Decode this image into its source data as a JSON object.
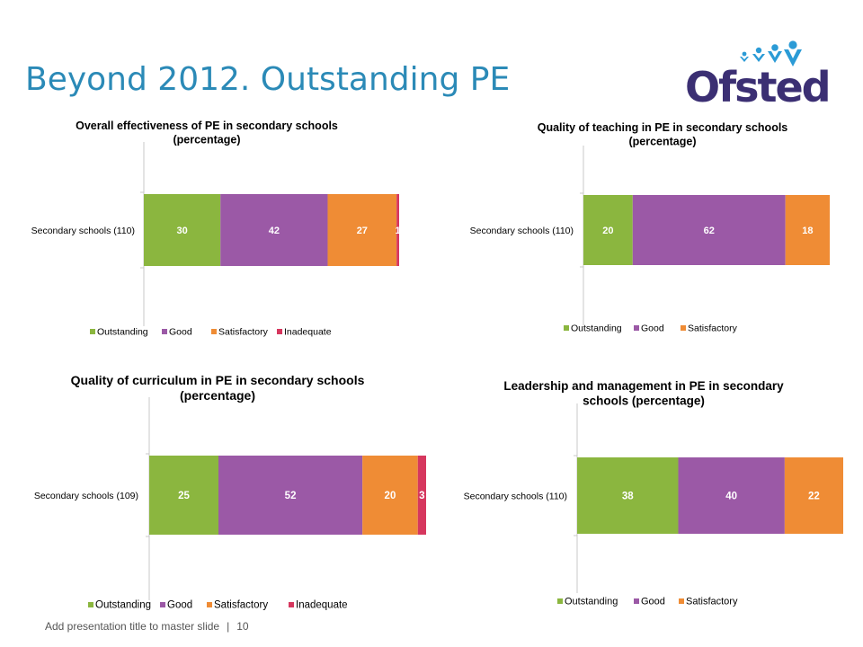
{
  "slide": {
    "title": "Beyond 2012. Outstanding PE",
    "logo_text": "Ofsted",
    "footer_text": "Add presentation title to master slide",
    "footer_sep": "|",
    "page_number": "10"
  },
  "colors": {
    "title": "#2b8ab7",
    "logo": "#3b2f73",
    "Outstanding": "#8bb63f",
    "Good": "#9b59a6",
    "Satisfactory": "#ef8c35",
    "Inadequate": "#d6375e"
  },
  "chart_data": [
    {
      "type": "bar",
      "orientation": "horizontal",
      "stacked": true,
      "title": [
        "Overall effectiveness of PE in secondary schools",
        "(percentage)"
      ],
      "categories": [
        "Secondary schools (110)"
      ],
      "series": [
        {
          "name": "Outstanding",
          "values": [
            30
          ]
        },
        {
          "name": "Good",
          "values": [
            42
          ]
        },
        {
          "name": "Satisfactory",
          "values": [
            27
          ]
        },
        {
          "name": "Inadequate",
          "values": [
            1
          ]
        }
      ],
      "legend": "bottom"
    },
    {
      "type": "bar",
      "orientation": "horizontal",
      "stacked": true,
      "title": [
        "Quality of teaching in PE in secondary schools",
        "(percentage)"
      ],
      "categories": [
        "Secondary schools (110)"
      ],
      "series": [
        {
          "name": "Outstanding",
          "values": [
            20
          ]
        },
        {
          "name": "Good",
          "values": [
            62
          ]
        },
        {
          "name": "Satisfactory",
          "values": [
            18
          ]
        }
      ],
      "legend": "bottom"
    },
    {
      "type": "bar",
      "orientation": "horizontal",
      "stacked": true,
      "title": [
        "Quality of curriculum in PE in secondary schools",
        "(percentage)"
      ],
      "categories": [
        "Secondary schools (109)"
      ],
      "series": [
        {
          "name": "Outstanding",
          "values": [
            25
          ]
        },
        {
          "name": "Good",
          "values": [
            52
          ]
        },
        {
          "name": "Satisfactory",
          "values": [
            20
          ]
        },
        {
          "name": "Inadequate",
          "values": [
            3
          ]
        }
      ],
      "legend": "bottom"
    },
    {
      "type": "bar",
      "orientation": "horizontal",
      "stacked": true,
      "title": [
        "Leadership and management in PE in secondary",
        "schools (percentage)"
      ],
      "categories": [
        "Secondary schools (110)"
      ],
      "series": [
        {
          "name": "Outstanding",
          "values": [
            38
          ]
        },
        {
          "name": "Good",
          "values": [
            40
          ]
        },
        {
          "name": "Satisfactory",
          "values": [
            22
          ]
        }
      ],
      "legend": "bottom"
    }
  ]
}
